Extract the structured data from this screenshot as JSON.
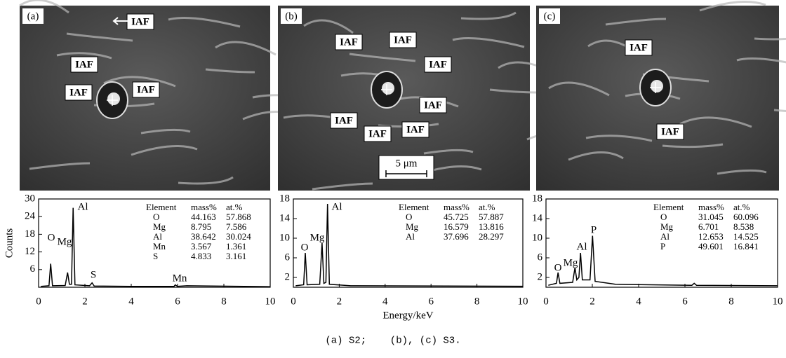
{
  "images": [
    {
      "tag": "(a)",
      "labels": [
        "IAF",
        "IAF",
        "IAF",
        "IAF"
      ]
    },
    {
      "tag": "(b)",
      "labels": [
        "IAF",
        "IAF",
        "IAF",
        "IAF",
        "IAF",
        "IAF",
        "IAF"
      ],
      "scale": "5 μm"
    },
    {
      "tag": "(c)",
      "labels": [
        "IAF",
        "IAF"
      ]
    }
  ],
  "chart_data": [
    {
      "type": "line",
      "y_label": "Counts",
      "color": "#000000",
      "x": [
        0.1,
        0.45,
        0.52,
        0.6,
        1.15,
        1.25,
        1.33,
        1.42,
        1.49,
        1.57,
        2.2,
        2.31,
        2.4,
        4,
        5.85,
        5.9,
        6,
        6.4,
        10
      ],
      "values": [
        0.3,
        0.5,
        8,
        0.5,
        0.6,
        5,
        1,
        1,
        27,
        0.8,
        0.5,
        1.5,
        0.4,
        0.3,
        0.3,
        0.8,
        0.3,
        0.5,
        0.2
      ],
      "annotations": [
        "O",
        "Mg",
        "Al",
        "S",
        "Mn"
      ],
      "xlim": [
        0,
        10
      ],
      "ylim": [
        0,
        30
      ],
      "xticks": [
        0,
        2,
        4,
        6,
        8,
        10
      ],
      "yticks": [
        6,
        12,
        18,
        24,
        30
      ],
      "table": {
        "header": [
          "Element",
          "mass%",
          "at.%"
        ],
        "rows": [
          [
            "O",
            "44.163",
            "57.868"
          ],
          [
            "Mg",
            "8.795",
            "7.586"
          ],
          [
            "Al",
            "38.642",
            "30.024"
          ],
          [
            "Mn",
            "3.567",
            "1.361"
          ],
          [
            "S",
            "4.833",
            "3.161"
          ]
        ]
      }
    },
    {
      "type": "line",
      "x_label": "Energy/keV",
      "color": "#000000",
      "x": [
        0.1,
        0.45,
        0.52,
        0.6,
        1.15,
        1.25,
        1.33,
        1.42,
        1.49,
        1.57,
        2.5,
        10
      ],
      "values": [
        0.3,
        0.5,
        7,
        0.5,
        0.6,
        9,
        0.8,
        1,
        17,
        0.6,
        0.3,
        0.2
      ],
      "annotations": [
        "O",
        "Mg",
        "Al"
      ],
      "xlim": [
        0,
        10
      ],
      "ylim": [
        0,
        18
      ],
      "xticks": [
        0,
        2,
        4,
        6,
        8,
        10
      ],
      "yticks": [
        2,
        6,
        10,
        14,
        18
      ],
      "table": {
        "header": [
          "Element",
          "mass%",
          "at.%"
        ],
        "rows": [
          [
            "O",
            "45.725",
            "57.887"
          ],
          [
            "Mg",
            "16.579",
            "13.816"
          ],
          [
            "Al",
            "37.696",
            "28.297"
          ]
        ]
      }
    },
    {
      "type": "line",
      "color": "#000000",
      "x": [
        0.1,
        0.45,
        0.52,
        0.6,
        1.15,
        1.25,
        1.33,
        1.42,
        1.49,
        1.57,
        1.9,
        2.01,
        2.12,
        3,
        6.3,
        6.4,
        6.5,
        10
      ],
      "values": [
        0.4,
        0.8,
        3,
        0.8,
        1,
        4,
        1.5,
        2,
        7,
        1.5,
        1.5,
        10.5,
        1.2,
        0.6,
        0.4,
        0.8,
        0.4,
        0.3
      ],
      "annotations": [
        "O",
        "Mg",
        "Al",
        "P"
      ],
      "xlim": [
        0,
        10
      ],
      "ylim": [
        0,
        18
      ],
      "xticks": [
        0,
        2,
        4,
        6,
        8,
        10
      ],
      "yticks": [
        2,
        6,
        10,
        14,
        18
      ],
      "table": {
        "header": [
          "Element",
          "mass%",
          "at.%"
        ],
        "rows": [
          [
            "O",
            "31.045",
            "60.096"
          ],
          [
            "Mg",
            "6.701",
            "8.538"
          ],
          [
            "Al",
            "12.653",
            "14.525"
          ],
          [
            "P",
            "49.601",
            "16.841"
          ]
        ]
      }
    }
  ],
  "caption": "(a) S2;    (b), (c) S3."
}
